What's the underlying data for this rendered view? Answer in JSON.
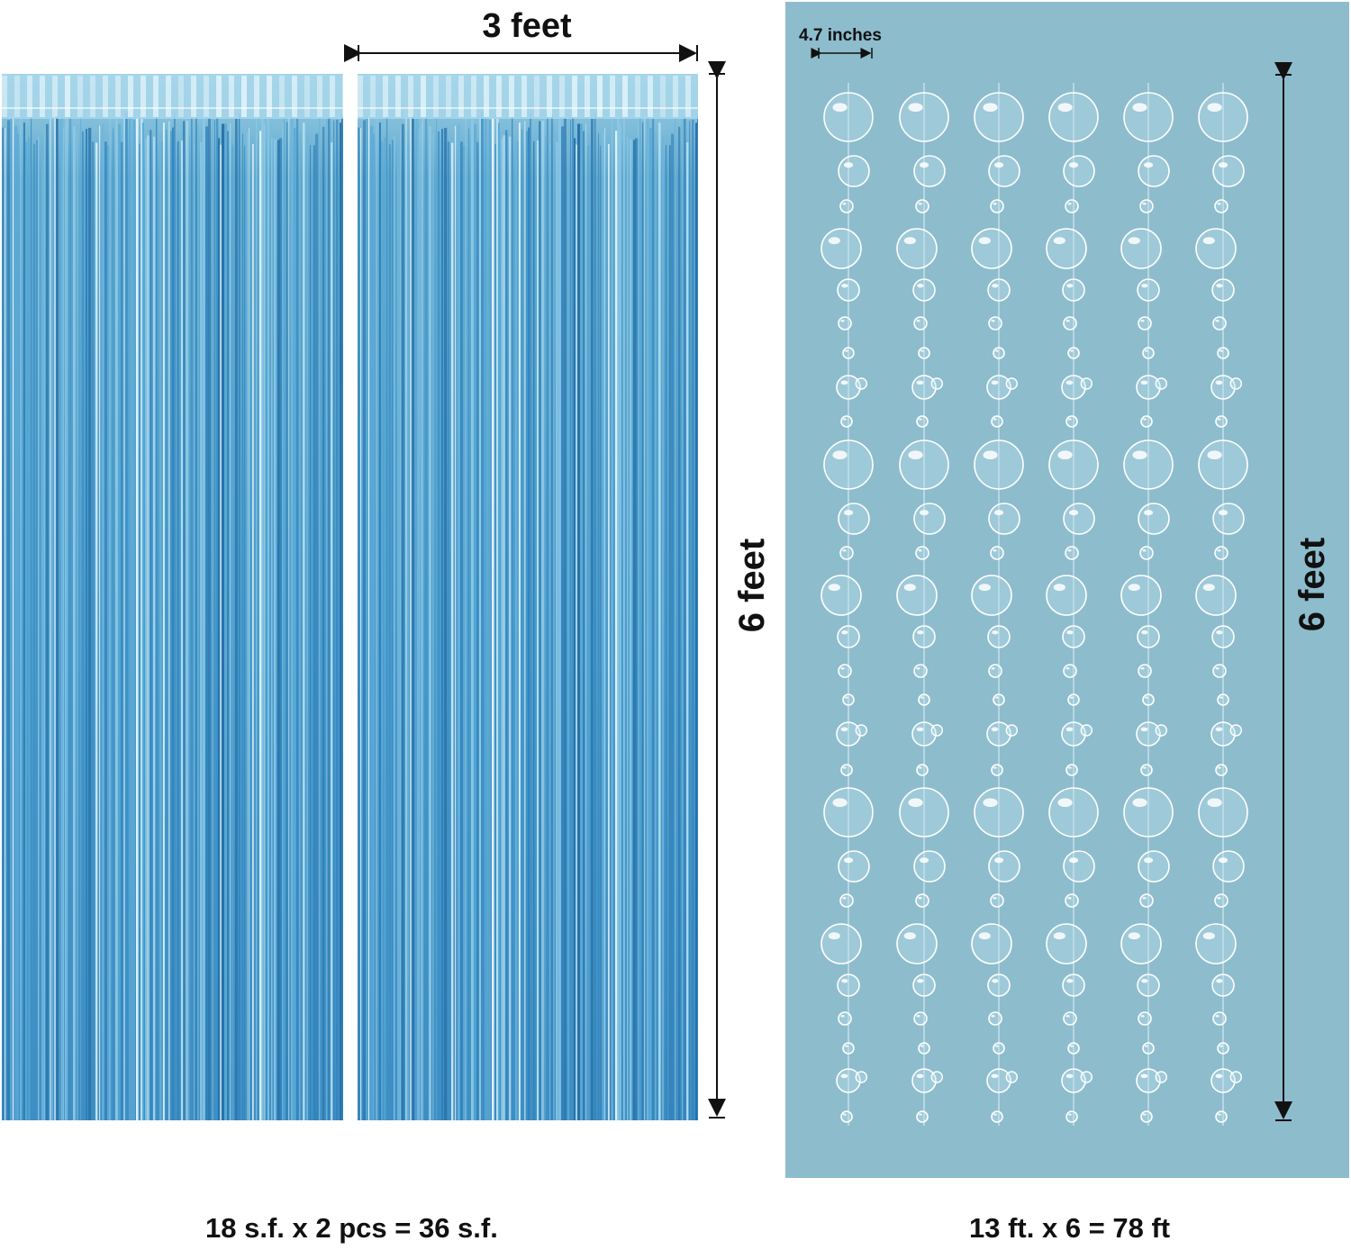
{
  "curtain": {
    "width_label": "3 feet",
    "height_label": "6 feet",
    "caption": "18 s.f. x 2 pcs = 36 s.f."
  },
  "bubbles": {
    "spacing_label": "4.7 inches",
    "height_label": "6 feet",
    "caption": "13 ft. x 6 = 78 ft",
    "strand_count": 6
  },
  "colors": {
    "curtain_blue": "#4a9ccc",
    "panel_blue": "#8dbccd"
  }
}
